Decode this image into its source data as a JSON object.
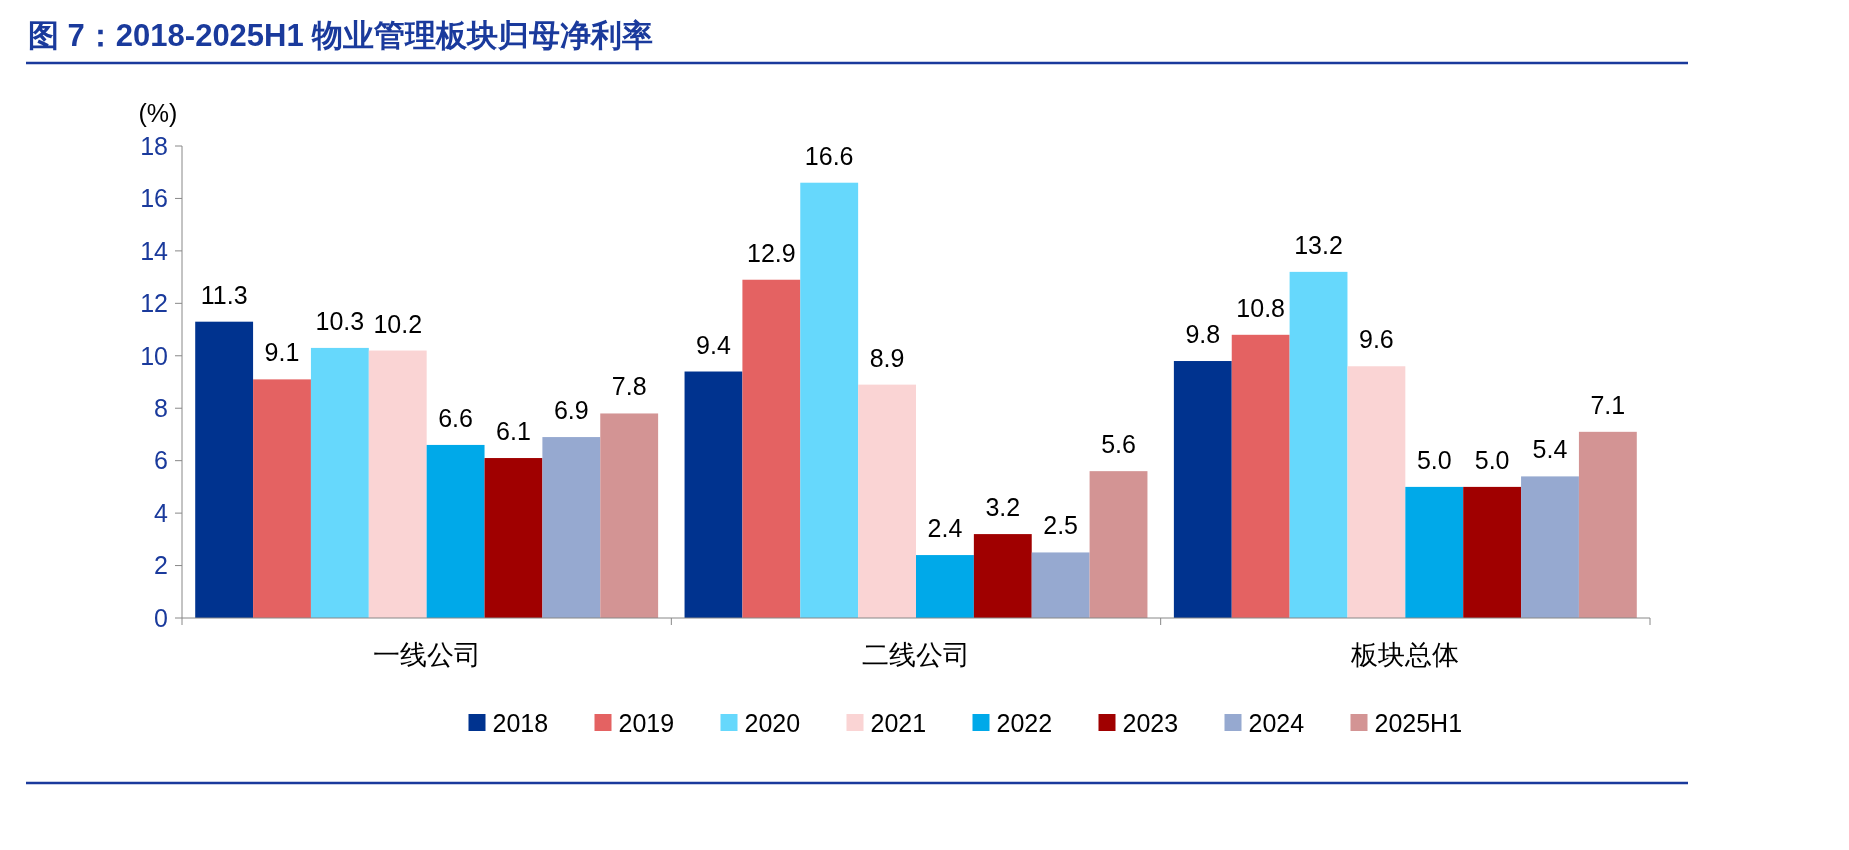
{
  "chart_data": {
    "type": "bar",
    "title": "图 7：2018-2025H1 物业管理板块归母净利率",
    "ylabel": "(%)",
    "categories": [
      "一线公司",
      "二线公司",
      "板块总体"
    ],
    "series": [
      {
        "name": "2018",
        "color": "#00338f",
        "values": [
          11.3,
          9.4,
          9.8
        ],
        "value_labels": [
          "11.3",
          "9.4",
          "9.8"
        ]
      },
      {
        "name": "2019",
        "color": "#e46262",
        "values": [
          9.1,
          12.9,
          10.8
        ],
        "value_labels": [
          "9.1",
          "12.9",
          "10.8"
        ]
      },
      {
        "name": "2020",
        "color": "#66d8fc",
        "values": [
          10.3,
          16.6,
          13.2
        ],
        "value_labels": [
          "10.3",
          "16.6",
          "13.2"
        ]
      },
      {
        "name": "2021",
        "color": "#fad4d4",
        "values": [
          10.2,
          8.9,
          9.6
        ],
        "value_labels": [
          "10.2",
          "8.9",
          "9.6"
        ]
      },
      {
        "name": "2022",
        "color": "#00a9e9",
        "values": [
          6.6,
          2.4,
          5.0
        ],
        "value_labels": [
          "6.6",
          "2.4",
          "5.0"
        ]
      },
      {
        "name": "2023",
        "color": "#a00000",
        "values": [
          6.1,
          3.2,
          5.0
        ],
        "value_labels": [
          "6.1",
          "3.2",
          "5.0"
        ]
      },
      {
        "name": "2024",
        "color": "#96a9d0",
        "values": [
          6.9,
          2.5,
          5.4
        ],
        "value_labels": [
          "6.9",
          "2.5",
          "5.4"
        ]
      },
      {
        "name": "2025H1",
        "color": "#d39494",
        "values": [
          7.8,
          5.6,
          7.1
        ],
        "value_labels": [
          "7.8",
          "5.6",
          "7.1"
        ]
      }
    ],
    "ylim": [
      0,
      18
    ],
    "yticks": [
      0,
      2,
      4,
      6,
      8,
      10,
      12,
      14,
      16,
      18
    ],
    "grid": false,
    "legend": "bottom"
  }
}
